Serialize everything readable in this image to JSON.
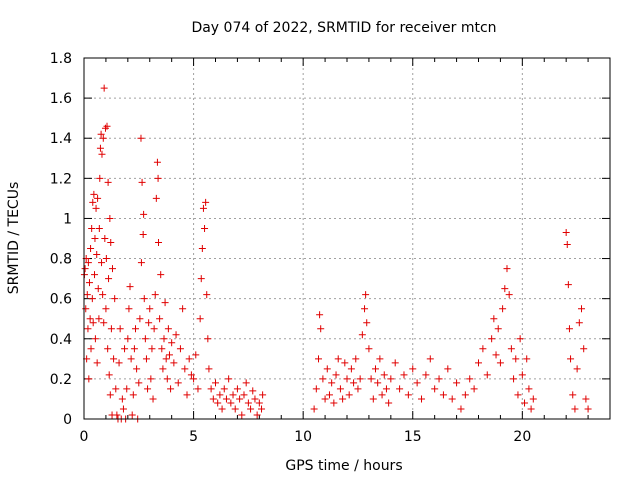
{
  "chart_data": {
    "type": "scatter",
    "title": "Day 074 of 2022, SRMTID for receiver mtcn",
    "xlabel": "GPS time / hours",
    "ylabel": "SRMTID / TECUs",
    "xlim": [
      0,
      24
    ],
    "ylim": [
      0,
      1.8
    ],
    "xticks": [
      0,
      5,
      10,
      15,
      20
    ],
    "xtick_labels": [
      "0",
      "5",
      "10",
      "15",
      "20"
    ],
    "yticks": [
      0,
      0.2,
      0.4,
      0.6,
      0.8,
      1.0,
      1.2,
      1.4,
      1.6,
      1.8
    ],
    "ytick_labels": [
      "0",
      "0.2",
      "0.4",
      "0.6",
      "0.8",
      "1",
      "1.2",
      "1.4",
      "1.6",
      "1.8"
    ],
    "grid": true,
    "marker": "+",
    "color": "#e00000",
    "series": [
      {
        "name": "SRMTID",
        "points": [
          [
            0.02,
            0.72
          ],
          [
            0.05,
            0.75
          ],
          [
            0.08,
            0.55
          ],
          [
            0.1,
            0.8
          ],
          [
            0.12,
            0.3
          ],
          [
            0.15,
            0.62
          ],
          [
            0.18,
            0.45
          ],
          [
            0.2,
            0.78
          ],
          [
            0.22,
            0.2
          ],
          [
            0.25,
            0.68
          ],
          [
            0.28,
            0.5
          ],
          [
            0.3,
            0.85
          ],
          [
            0.32,
            0.35
          ],
          [
            0.35,
            0.95
          ],
          [
            0.38,
            0.6
          ],
          [
            0.4,
            1.08
          ],
          [
            0.42,
            0.48
          ],
          [
            0.45,
            1.12
          ],
          [
            0.48,
            0.72
          ],
          [
            0.5,
            0.9
          ],
          [
            0.52,
            0.4
          ],
          [
            0.55,
            1.05
          ],
          [
            0.58,
            0.82
          ],
          [
            0.6,
            0.28
          ],
          [
            0.62,
            1.1
          ],
          [
            0.65,
            0.65
          ],
          [
            0.68,
            0.5
          ],
          [
            0.7,
            0.95
          ],
          [
            0.72,
            1.2
          ],
          [
            0.75,
            1.35
          ],
          [
            0.78,
            1.42
          ],
          [
            0.8,
            0.78
          ],
          [
            0.82,
            1.32
          ],
          [
            0.85,
            0.62
          ],
          [
            0.88,
            1.4
          ],
          [
            0.9,
            0.48
          ],
          [
            0.92,
            1.65
          ],
          [
            0.95,
            0.9
          ],
          [
            0.98,
            1.45
          ],
          [
            1.0,
            0.55
          ],
          [
            1.02,
            0.8
          ],
          [
            1.05,
            1.46
          ],
          [
            1.08,
            0.35
          ],
          [
            1.1,
            1.18
          ],
          [
            1.12,
            0.7
          ],
          [
            1.15,
            0.22
          ],
          [
            1.18,
            1.0
          ],
          [
            1.2,
            0.12
          ],
          [
            1.22,
            0.88
          ],
          [
            1.25,
            0.45
          ],
          [
            1.28,
            0.02
          ],
          [
            1.3,
            0.75
          ],
          [
            1.35,
            0.3
          ],
          [
            1.4,
            0.6
          ],
          [
            1.45,
            0.15
          ],
          [
            1.5,
            0.02
          ],
          [
            1.55,
            0.0
          ],
          [
            1.6,
            0.28
          ],
          [
            1.65,
            0.45
          ],
          [
            1.7,
            0.0
          ],
          [
            1.75,
            0.1
          ],
          [
            1.8,
            0.05
          ],
          [
            1.85,
            0.35
          ],
          [
            1.9,
            0.0
          ],
          [
            1.95,
            0.15
          ],
          [
            2.0,
            0.4
          ],
          [
            2.05,
            0.55
          ],
          [
            2.1,
            0.66
          ],
          [
            2.15,
            0.3
          ],
          [
            2.2,
            0.02
          ],
          [
            2.25,
            0.12
          ],
          [
            2.3,
            0.35
          ],
          [
            2.35,
            0.45
          ],
          [
            2.4,
            0.25
          ],
          [
            2.45,
            0.0
          ],
          [
            2.5,
            0.18
          ],
          [
            2.55,
            0.5
          ],
          [
            2.6,
            1.4
          ],
          [
            2.62,
            0.78
          ],
          [
            2.65,
            1.18
          ],
          [
            2.7,
            0.92
          ],
          [
            2.72,
            1.02
          ],
          [
            2.75,
            0.6
          ],
          [
            2.8,
            0.4
          ],
          [
            2.85,
            0.3
          ],
          [
            2.9,
            0.15
          ],
          [
            2.95,
            0.48
          ],
          [
            3.0,
            0.55
          ],
          [
            3.05,
            0.2
          ],
          [
            3.1,
            0.35
          ],
          [
            3.15,
            0.1
          ],
          [
            3.2,
            0.45
          ],
          [
            3.25,
            0.62
          ],
          [
            3.3,
            1.1
          ],
          [
            3.35,
            1.28
          ],
          [
            3.38,
            1.2
          ],
          [
            3.4,
            0.88
          ],
          [
            3.45,
            0.5
          ],
          [
            3.5,
            0.72
          ],
          [
            3.55,
            0.35
          ],
          [
            3.6,
            0.25
          ],
          [
            3.65,
            0.4
          ],
          [
            3.7,
            0.58
          ],
          [
            3.75,
            0.3
          ],
          [
            3.8,
            0.2
          ],
          [
            3.85,
            0.45
          ],
          [
            3.9,
            0.32
          ],
          [
            3.95,
            0.15
          ],
          [
            4.0,
            0.38
          ],
          [
            4.1,
            0.28
          ],
          [
            4.2,
            0.42
          ],
          [
            4.3,
            0.18
          ],
          [
            4.4,
            0.35
          ],
          [
            4.5,
            0.55
          ],
          [
            4.6,
            0.25
          ],
          [
            4.7,
            0.12
          ],
          [
            4.8,
            0.3
          ],
          [
            4.9,
            0.22
          ],
          [
            5.0,
            0.2
          ],
          [
            5.1,
            0.32
          ],
          [
            5.2,
            0.15
          ],
          [
            5.3,
            0.5
          ],
          [
            5.35,
            0.7
          ],
          [
            5.4,
            0.85
          ],
          [
            5.45,
            1.05
          ],
          [
            5.5,
            0.95
          ],
          [
            5.55,
            1.08
          ],
          [
            5.6,
            0.62
          ],
          [
            5.65,
            0.4
          ],
          [
            5.7,
            0.25
          ],
          [
            5.8,
            0.15
          ],
          [
            5.9,
            0.1
          ],
          [
            6.0,
            0.18
          ],
          [
            6.1,
            0.08
          ],
          [
            6.2,
            0.12
          ],
          [
            6.3,
            0.05
          ],
          [
            6.4,
            0.15
          ],
          [
            6.5,
            0.1
          ],
          [
            6.6,
            0.2
          ],
          [
            6.7,
            0.08
          ],
          [
            6.8,
            0.12
          ],
          [
            6.9,
            0.05
          ],
          [
            7.0,
            0.15
          ],
          [
            7.1,
            0.1
          ],
          [
            7.2,
            0.02
          ],
          [
            7.3,
            0.12
          ],
          [
            7.4,
            0.18
          ],
          [
            7.5,
            0.08
          ],
          [
            7.6,
            0.05
          ],
          [
            7.7,
            0.14
          ],
          [
            7.8,
            0.1
          ],
          [
            7.9,
            0.02
          ],
          [
            8.0,
            0.08
          ],
          [
            8.1,
            0.05
          ],
          [
            8.15,
            0.12
          ],
          [
            10.5,
            0.05
          ],
          [
            10.6,
            0.15
          ],
          [
            10.7,
            0.3
          ],
          [
            10.75,
            0.52
          ],
          [
            10.8,
            0.45
          ],
          [
            10.9,
            0.2
          ],
          [
            11.0,
            0.1
          ],
          [
            11.1,
            0.25
          ],
          [
            11.2,
            0.12
          ],
          [
            11.3,
            0.18
          ],
          [
            11.4,
            0.08
          ],
          [
            11.5,
            0.22
          ],
          [
            11.6,
            0.3
          ],
          [
            11.7,
            0.15
          ],
          [
            11.8,
            0.1
          ],
          [
            11.9,
            0.28
          ],
          [
            12.0,
            0.2
          ],
          [
            12.1,
            0.12
          ],
          [
            12.2,
            0.25
          ],
          [
            12.3,
            0.18
          ],
          [
            12.4,
            0.3
          ],
          [
            12.5,
            0.15
          ],
          [
            12.6,
            0.2
          ],
          [
            12.7,
            0.42
          ],
          [
            12.8,
            0.55
          ],
          [
            12.85,
            0.62
          ],
          [
            12.9,
            0.48
          ],
          [
            13.0,
            0.35
          ],
          [
            13.1,
            0.2
          ],
          [
            13.2,
            0.1
          ],
          [
            13.3,
            0.25
          ],
          [
            13.4,
            0.18
          ],
          [
            13.5,
            0.3
          ],
          [
            13.6,
            0.12
          ],
          [
            13.7,
            0.22
          ],
          [
            13.8,
            0.15
          ],
          [
            13.9,
            0.08
          ],
          [
            14.0,
            0.2
          ],
          [
            14.2,
            0.28
          ],
          [
            14.4,
            0.15
          ],
          [
            14.6,
            0.22
          ],
          [
            14.8,
            0.12
          ],
          [
            15.0,
            0.25
          ],
          [
            15.2,
            0.18
          ],
          [
            15.4,
            0.1
          ],
          [
            15.6,
            0.22
          ],
          [
            15.8,
            0.3
          ],
          [
            16.0,
            0.15
          ],
          [
            16.2,
            0.2
          ],
          [
            16.4,
            0.12
          ],
          [
            16.6,
            0.25
          ],
          [
            16.8,
            0.1
          ],
          [
            17.0,
            0.18
          ],
          [
            17.2,
            0.05
          ],
          [
            17.4,
            0.12
          ],
          [
            17.6,
            0.2
          ],
          [
            17.8,
            0.15
          ],
          [
            18.0,
            0.28
          ],
          [
            18.2,
            0.35
          ],
          [
            18.4,
            0.22
          ],
          [
            18.6,
            0.4
          ],
          [
            18.7,
            0.5
          ],
          [
            18.8,
            0.32
          ],
          [
            18.9,
            0.45
          ],
          [
            19.0,
            0.28
          ],
          [
            19.1,
            0.55
          ],
          [
            19.2,
            0.65
          ],
          [
            19.3,
            0.75
          ],
          [
            19.4,
            0.62
          ],
          [
            19.5,
            0.35
          ],
          [
            19.6,
            0.2
          ],
          [
            19.7,
            0.3
          ],
          [
            19.8,
            0.12
          ],
          [
            19.9,
            0.4
          ],
          [
            20.0,
            0.22
          ],
          [
            20.1,
            0.08
          ],
          [
            20.2,
            0.3
          ],
          [
            20.3,
            0.15
          ],
          [
            20.4,
            0.05
          ],
          [
            20.5,
            0.1
          ],
          [
            22.0,
            0.93
          ],
          [
            22.05,
            0.87
          ],
          [
            22.1,
            0.67
          ],
          [
            22.15,
            0.45
          ],
          [
            22.2,
            0.3
          ],
          [
            22.3,
            0.12
          ],
          [
            22.4,
            0.05
          ],
          [
            22.5,
            0.25
          ],
          [
            22.6,
            0.48
          ],
          [
            22.7,
            0.55
          ],
          [
            22.8,
            0.35
          ],
          [
            22.9,
            0.1
          ],
          [
            23.0,
            0.05
          ]
        ]
      }
    ]
  }
}
